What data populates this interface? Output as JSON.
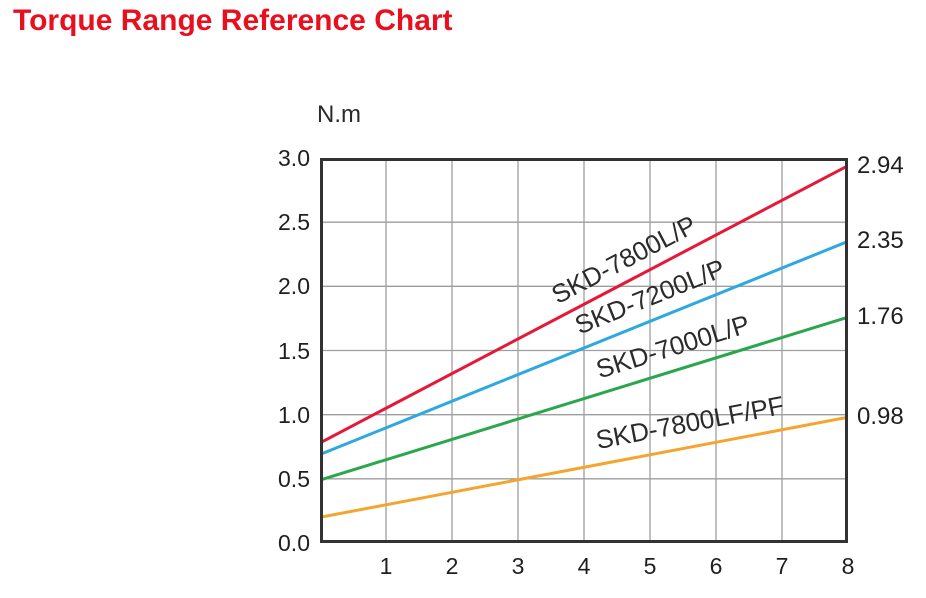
{
  "title": "Torque Range Reference Chart",
  "title_color": "#e8101e",
  "chart_data": {
    "type": "line",
    "title": "Torque Range Reference Chart",
    "xlabel": "",
    "ylabel": "N.m",
    "x_range": [
      0,
      8
    ],
    "y_range": [
      0,
      3
    ],
    "x_ticks": [
      "1",
      "2",
      "3",
      "4",
      "5",
      "6",
      "7",
      "8"
    ],
    "y_ticks": [
      "0.0",
      "0.5",
      "1.0",
      "1.5",
      "2.0",
      "2.5",
      "3.0"
    ],
    "grid": true,
    "grid_color": "#9e9e9e",
    "axis_border_color": "#323232",
    "legend_position": "rotated-labels-on-lines",
    "series": [
      {
        "name": "SKD-7800L/P",
        "color": "#e51937",
        "x": [
          0,
          8
        ],
        "y": [
          0.78,
          2.94
        ],
        "end_label": "2.94",
        "label_at_x": 4.6
      },
      {
        "name": "SKD-7200L/P",
        "color": "#2fa8e1",
        "x": [
          0,
          8
        ],
        "y": [
          0.69,
          2.35
        ],
        "end_label": "2.35",
        "label_at_x": 5.0
      },
      {
        "name": "SKD-7000L/P",
        "color": "#2aa64d",
        "x": [
          0,
          8
        ],
        "y": [
          0.49,
          1.76
        ],
        "end_label": "1.76",
        "label_at_x": 5.35
      },
      {
        "name": "SKD-7800LF/PF",
        "color": "#f5a52f",
        "x": [
          0,
          8
        ],
        "y": [
          0.2,
          0.98
        ],
        "end_label": "0.98",
        "label_at_x": 5.6
      }
    ]
  }
}
